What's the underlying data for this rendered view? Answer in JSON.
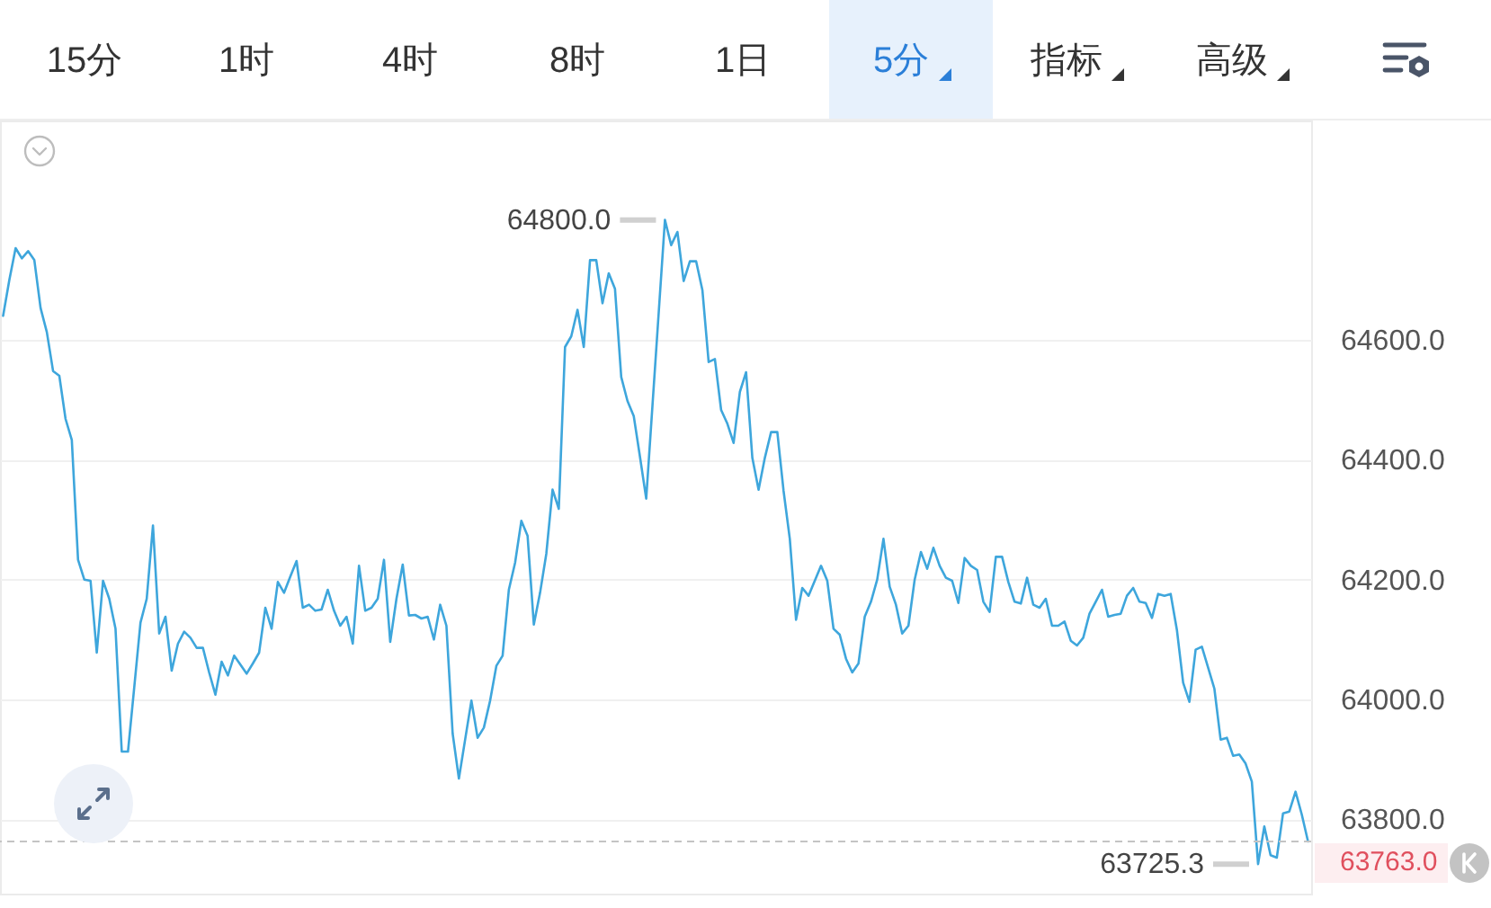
{
  "chart_data": [
    {
      "type": "other",
      "annotations": [
        "15分",
        "1时",
        "4时",
        "8时",
        "1日",
        "5分",
        "指标",
        "高级"
      ]
    },
    {
      "type": "line",
      "annotations": [
        "64800.0",
        "63725.3"
      ],
      "categories": [
        null,
        null,
        null,
        null,
        null,
        null,
        null,
        null,
        null,
        null,
        null,
        null,
        null,
        null,
        null,
        null,
        null,
        null,
        null,
        null,
        null,
        null,
        null,
        null,
        null,
        null,
        null,
        null,
        null,
        null,
        null,
        null,
        null,
        null,
        null,
        null,
        null,
        null,
        null,
        null,
        null,
        null,
        null,
        null,
        null,
        null,
        null,
        null,
        null,
        null,
        null,
        null,
        null,
        null,
        null,
        null,
        null,
        null,
        null,
        null,
        null,
        null,
        null,
        null,
        null,
        null,
        null,
        null,
        null,
        null,
        null,
        null,
        null,
        null,
        null,
        null,
        null,
        null,
        null,
        null,
        null,
        null,
        null,
        null,
        null,
        null,
        null,
        null,
        null,
        null,
        null,
        null,
        null,
        null,
        null,
        null,
        null,
        null,
        null,
        null,
        null,
        null,
        null,
        null,
        null,
        null,
        null,
        null,
        null,
        null,
        null,
        null,
        null,
        null,
        null,
        null,
        null,
        null,
        null,
        null,
        null,
        null,
        null,
        null,
        null,
        null,
        null,
        null,
        null,
        null,
        null,
        null,
        null,
        null,
        null,
        null,
        null,
        null,
        null,
        null,
        null,
        null,
        null,
        null,
        null,
        null,
        null,
        null,
        null,
        null,
        null,
        null,
        null,
        null,
        null,
        null,
        null,
        null,
        null,
        null,
        null,
        null,
        null,
        null,
        null,
        null,
        null,
        null,
        null,
        null,
        null,
        null,
        null,
        null,
        null,
        null,
        null,
        null,
        null,
        null,
        null,
        null,
        null,
        null,
        null,
        null,
        null,
        null,
        null,
        null,
        null,
        null,
        null,
        null,
        null,
        null,
        null,
        null,
        null,
        null,
        null,
        null,
        null,
        null,
        null,
        null,
        null,
        null,
        null,
        null
      ],
      "series": [
        {
          "color": "#3ea6dc",
          "values": [
            64640,
            64700,
            64753,
            64736,
            64748,
            64733,
            64653,
            64613,
            64548,
            64540,
            64468,
            64433,
            64233,
            64200,
            64198,
            64078,
            64198,
            64168,
            64118,
            63913,
            63913,
            64020,
            64128,
            64168,
            64290,
            64110,
            64138,
            64048,
            64093,
            64113,
            64103,
            64086,
            64086,
            64045,
            64008,
            64063,
            64040,
            64073,
            64058,
            64043,
            64060,
            64078,
            64153,
            64118,
            64196,
            64178,
            64205,
            64231,
            64153,
            64158,
            64148,
            64150,
            64183,
            64148,
            64123,
            64138,
            64093,
            64223,
            64148,
            64153,
            64168,
            64233,
            64096,
            64168,
            64225,
            64140,
            64141,
            64135,
            64138,
            64100,
            64158,
            64123,
            63943,
            63868,
            63933,
            63998,
            63936,
            63953,
            63998,
            64056,
            64073,
            64183,
            64228,
            64298,
            64273,
            64125,
            64178,
            64243,
            64350,
            64318,
            64588,
            64606,
            64650,
            64588,
            64733,
            64733,
            64661,
            64711,
            64685,
            64538,
            64498,
            64473,
            64405,
            64335,
            64490,
            64645,
            64800,
            64758,
            64780,
            64698,
            64731,
            64731,
            64683,
            64563,
            64568,
            64483,
            64460,
            64428,
            64513,
            64546,
            64403,
            64350,
            64403,
            64446,
            64446,
            64348,
            64268,
            64133,
            64186,
            64173,
            64198,
            64223,
            64198,
            64118,
            64108,
            64068,
            64045,
            64060,
            64138,
            64163,
            64200,
            64268,
            64188,
            64158,
            64110,
            64123,
            64200,
            64246,
            64218,
            64253,
            64223,
            64203,
            64198,
            64161,
            64236,
            64223,
            64216,
            64163,
            64146,
            64238,
            64238,
            64196,
            64163,
            64160,
            64203,
            64158,
            64153,
            64168,
            64123,
            64123,
            64130,
            64098,
            64090,
            64103,
            64143,
            64163,
            64183,
            64138,
            64141,
            64143,
            64173,
            64186,
            64163,
            64161,
            64136,
            64176,
            64173,
            64176,
            64116,
            64028,
            63996,
            64083,
            64088,
            64053,
            64018,
            63933,
            63936,
            63906,
            63908,
            63893,
            63863,
            63725.3,
            63788,
            63740,
            63736,
            63810,
            63813,
            63846,
            63808,
            63763
          ]
        }
      ],
      "ylim": [
        63676,
        64966
      ],
      "yticks": [
        {
          "value": 63800,
          "label": "63800.0"
        },
        {
          "value": 64000,
          "label": "64000.0"
        },
        {
          "value": 64200,
          "label": "64200.0"
        },
        {
          "value": 64400,
          "label": "64400.0"
        },
        {
          "value": 64600,
          "label": "64600.0"
        }
      ],
      "grid": "y",
      "ref_lines": [
        {
          "axis": "y",
          "value": 63763,
          "label": "63763.0",
          "color": "#c4c4c4",
          "line_style": "dashed"
        }
      ]
    }
  ]
}
